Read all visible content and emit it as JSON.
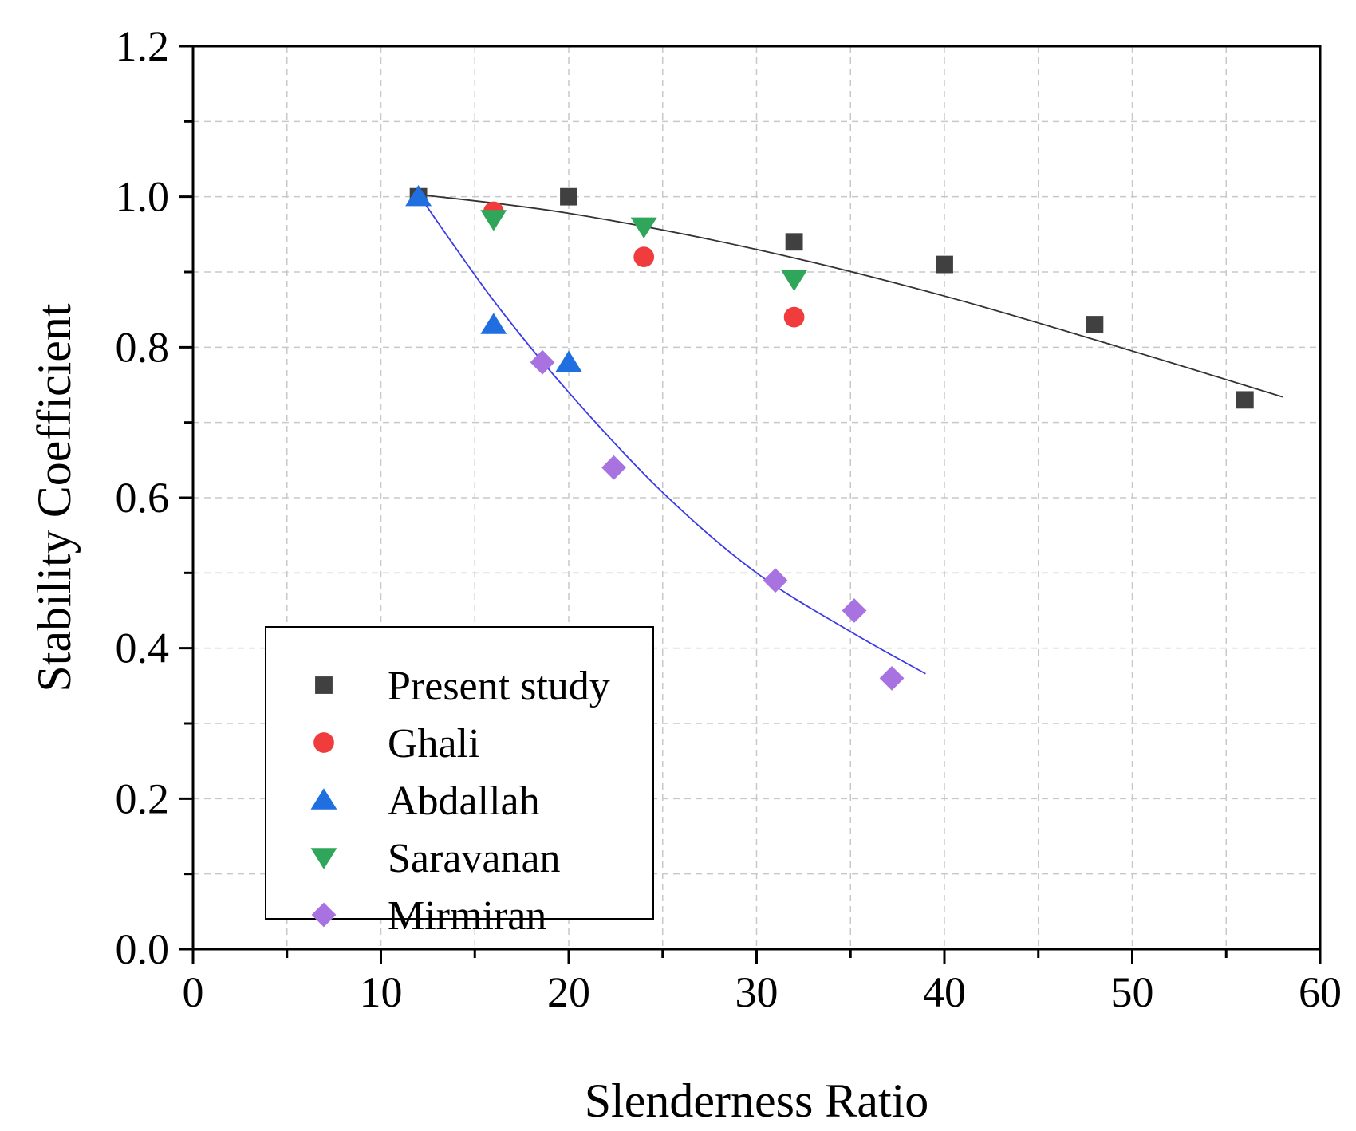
{
  "chart_data": {
    "type": "scatter",
    "title": "",
    "xlabel": "Slenderness Ratio",
    "ylabel": "Stability Coefficient",
    "xlim": [
      0,
      60
    ],
    "ylim": [
      0.0,
      1.2
    ],
    "x_ticks": [
      0,
      10,
      20,
      30,
      40,
      50,
      60
    ],
    "x_tick_labels": [
      "0",
      "10",
      "20",
      "30",
      "40",
      "50",
      "60"
    ],
    "y_ticks": [
      0.0,
      0.2,
      0.4,
      0.6,
      0.8,
      1.0,
      1.2
    ],
    "y_tick_labels": [
      "0.0",
      "0.2",
      "0.4",
      "0.6",
      "0.8",
      "1.0",
      "1.2"
    ],
    "x_minor_step": 5,
    "y_minor_step": 0.1,
    "grid": true,
    "legend_position": "bottom-left",
    "series": [
      {
        "name": "Present study",
        "marker": "square",
        "color": "#404040",
        "points": [
          [
            12,
            1.0
          ],
          [
            20,
            1.0
          ],
          [
            32,
            0.94
          ],
          [
            40,
            0.91
          ],
          [
            48,
            0.83
          ],
          [
            56,
            0.73
          ]
        ]
      },
      {
        "name": "Ghali",
        "marker": "circle",
        "color": "#f03c3c",
        "points": [
          [
            16,
            0.98
          ],
          [
            24,
            0.92
          ],
          [
            32,
            0.84
          ]
        ]
      },
      {
        "name": "Abdallah",
        "marker": "triangle-up",
        "color": "#1f6fe0",
        "points": [
          [
            12,
            1.0
          ],
          [
            16,
            0.83
          ],
          [
            20,
            0.78
          ]
        ]
      },
      {
        "name": "Saravanan",
        "marker": "triangle-down",
        "color": "#2fa65a",
        "points": [
          [
            16,
            0.97
          ],
          [
            24,
            0.96
          ],
          [
            32,
            0.89
          ]
        ]
      },
      {
        "name": "Mirmiran",
        "marker": "diamond",
        "color": "#a872e0",
        "points": [
          [
            18.6,
            0.78
          ],
          [
            22.4,
            0.64
          ],
          [
            31,
            0.49
          ],
          [
            35.2,
            0.45
          ],
          [
            37.2,
            0.36
          ]
        ]
      }
    ],
    "trend_lines": [
      {
        "color": "#333333",
        "points": [
          [
            12,
            1.003
          ],
          [
            20,
            0.978
          ],
          [
            30,
            0.93
          ],
          [
            40,
            0.868
          ],
          [
            50,
            0.795
          ],
          [
            58,
            0.734
          ]
        ]
      },
      {
        "color": "#3a3ae8",
        "points": [
          [
            12,
            1.003
          ],
          [
            16,
            0.862
          ],
          [
            20,
            0.74
          ],
          [
            25,
            0.607
          ],
          [
            30,
            0.5
          ],
          [
            35,
            0.422
          ],
          [
            39,
            0.366
          ]
        ]
      }
    ]
  }
}
